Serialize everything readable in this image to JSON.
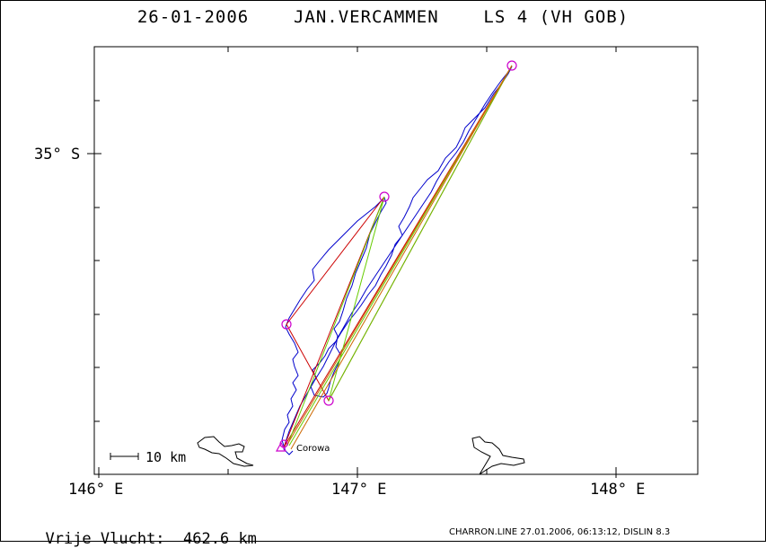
{
  "header": {
    "title": "26-01-2006    JAN.VERCAMMEN    LS 4 (VH GOB)"
  },
  "axes": {
    "lat_label": "35° S",
    "lon_labels": [
      "146° E",
      "147° E",
      "148° E"
    ]
  },
  "scale_bar": {
    "label": "10 km"
  },
  "places": {
    "corowa": "Corowa"
  },
  "stats": {
    "free_flight_label": "Vrije Vlucht:",
    "free_flight_value": "462.6 km"
  },
  "footer": {
    "text": "CHARRON.LINE 27.01.2006, 06:13:12, DISLIN 8.3"
  },
  "colors": {
    "track": "#0000cc",
    "turnpoint": "#cc00cc",
    "leg_red": "#cc0000",
    "leg_green": "#66cc00",
    "leg_orange": "#cc6600",
    "border": "#000000"
  }
}
